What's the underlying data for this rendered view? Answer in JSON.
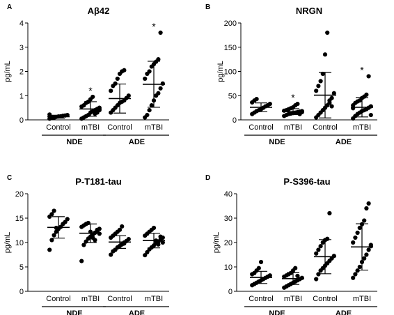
{
  "chart_data": [
    {
      "panel_label": "A",
      "type": "scatter",
      "title": "Aβ42",
      "ylabel": "pg/mL",
      "ylim": [
        0,
        4
      ],
      "yticks": [
        "0",
        "1",
        "2",
        "3",
        "4"
      ],
      "categories": [
        "Control",
        "mTBI",
        "Control",
        "mTBI"
      ],
      "groups": [
        "NDE",
        "ADE"
      ],
      "significance": [
        "",
        "*",
        "",
        "*"
      ],
      "series": [
        {
          "values": [
            0.05,
            0.08,
            0.1,
            0.12,
            0.14,
            0.15,
            0.17,
            0.18,
            0.2,
            0.22,
            0.12,
            0.09
          ],
          "mean": 0.13,
          "sd": 0.06
        },
        {
          "values": [
            0.05,
            0.1,
            0.15,
            0.2,
            0.3,
            0.35,
            0.4,
            0.45,
            0.5,
            0.55,
            0.6,
            0.7,
            0.75,
            0.85,
            0.95,
            0.25,
            0.3,
            0.4
          ],
          "mean": 0.45,
          "sd": 0.3
        },
        {
          "values": [
            0.3,
            0.4,
            0.5,
            0.6,
            0.7,
            0.75,
            0.8,
            0.9,
            1.0,
            1.2,
            1.4,
            1.5,
            1.7,
            1.9,
            2.0,
            2.05
          ],
          "mean": 0.88,
          "sd": 0.6
        },
        {
          "values": [
            0.1,
            0.2,
            0.4,
            0.6,
            0.8,
            1.0,
            1.1,
            1.3,
            1.5,
            1.7,
            1.9,
            2.0,
            2.2,
            2.3,
            2.4,
            2.5,
            3.6
          ],
          "mean": 1.47,
          "sd": 0.95
        }
      ]
    },
    {
      "panel_label": "B",
      "type": "scatter",
      "title": "NRGN",
      "ylabel": "pg/mL",
      "ylim": [
        0,
        200
      ],
      "yticks": [
        "0",
        "50",
        "100",
        "150",
        "200"
      ],
      "categories": [
        "Control",
        "mTBI",
        "Control",
        "mTBI"
      ],
      "groups": [
        "NDE",
        "ADE"
      ],
      "significance": [
        "",
        "*",
        "",
        "*"
      ],
      "series": [
        {
          "values": [
            12,
            15,
            18,
            20,
            22,
            25,
            28,
            30,
            33,
            36,
            40,
            43
          ],
          "mean": 26,
          "sd": 9
        },
        {
          "values": [
            8,
            10,
            12,
            13,
            14,
            15,
            16,
            17,
            18,
            19,
            20,
            22,
            24,
            26,
            30,
            33,
            12,
            16
          ],
          "mean": 17,
          "sd": 6
        },
        {
          "values": [
            5,
            10,
            15,
            20,
            25,
            30,
            35,
            45,
            55,
            60,
            70,
            80,
            95,
            135,
            180,
            40,
            28
          ],
          "mean": 51,
          "sd": 47
        },
        {
          "values": [
            3,
            8,
            12,
            15,
            18,
            20,
            22,
            25,
            28,
            30,
            35,
            38,
            40,
            45,
            48,
            52,
            90,
            10,
            24
          ],
          "mean": 26,
          "sd": 20
        }
      ]
    },
    {
      "panel_label": "C",
      "type": "scatter",
      "title": "P-T181-tau",
      "ylabel": "pg/mL",
      "ylim": [
        0,
        20
      ],
      "yticks": [
        "0",
        "5",
        "10",
        "15",
        "20"
      ],
      "categories": [
        "Control",
        "mTBI",
        "Control",
        "mTBI"
      ],
      "groups": [
        "NDE",
        "ADE"
      ],
      "significance": [
        "",
        "",
        "",
        ""
      ],
      "series": [
        {
          "values": [
            8.5,
            10.5,
            11.5,
            12.2,
            12.8,
            13.2,
            13.8,
            14.2,
            14.8,
            15.3,
            15.8,
            16.5,
            13.0
          ],
          "mean": 13.1,
          "sd": 2.2
        },
        {
          "values": [
            6.2,
            9.5,
            10.2,
            10.8,
            11.2,
            11.6,
            12.0,
            12.4,
            12.8,
            13.2,
            13.5,
            13.8,
            14.0,
            12.2,
            11.0,
            10.5,
            12.6,
            11.8
          ],
          "mean": 11.9,
          "sd": 1.9
        },
        {
          "values": [
            7.5,
            8.2,
            8.5,
            9.0,
            9.3,
            9.6,
            10.0,
            10.3,
            10.7,
            11.0,
            11.4,
            11.8,
            12.2,
            12.6,
            13.3,
            9.8
          ],
          "mean": 10.1,
          "sd": 1.3
        },
        {
          "values": [
            7.4,
            8.0,
            8.6,
            9.0,
            9.4,
            9.8,
            10.2,
            10.6,
            11.0,
            11.4,
            11.8,
            12.2,
            12.6,
            13.0,
            10.4,
            9.6,
            11.2,
            10.0
          ],
          "mean": 10.4,
          "sd": 1.5
        }
      ]
    },
    {
      "panel_label": "D",
      "type": "scatter",
      "title": "P-S396-tau",
      "ylabel": "pg/mL",
      "ylim": [
        0,
        40
      ],
      "yticks": [
        "0",
        "10",
        "20",
        "30",
        "40"
      ],
      "categories": [
        "Control",
        "mTBI",
        "Control",
        "mTBI"
      ],
      "groups": [
        "NDE",
        "ADE"
      ],
      "significance": [
        "",
        "",
        "",
        ""
      ],
      "series": [
        {
          "values": [
            2.5,
            3.0,
            3.5,
            4.0,
            4.5,
            5.0,
            5.5,
            6.0,
            6.5,
            7.0,
            7.5,
            8.5,
            9.5,
            12.0
          ],
          "mean": 5.7,
          "sd": 2.5
        },
        {
          "values": [
            1.5,
            2.0,
            2.5,
            3.0,
            3.5,
            4.0,
            4.5,
            5.0,
            5.5,
            6.0,
            6.5,
            7.0,
            7.5,
            8.5,
            9.5,
            6.3
          ],
          "mean": 5.2,
          "sd": 2.4
        },
        {
          "values": [
            5.0,
            7.0,
            8.5,
            9.5,
            10.5,
            11.5,
            12.5,
            13.5,
            14.5,
            15.5,
            17.0,
            18.5,
            20.0,
            21.0,
            21.5,
            32.0
          ],
          "mean": 14.2,
          "sd": 7.0
        },
        {
          "values": [
            5.5,
            7.0,
            8.5,
            10.0,
            12.0,
            13.5,
            15.0,
            17.0,
            18.5,
            20.0,
            22.0,
            24.0,
            26.0,
            27.5,
            29.0,
            34.0,
            36.0,
            19.0
          ],
          "mean": 18.2,
          "sd": 9.5
        }
      ]
    }
  ]
}
